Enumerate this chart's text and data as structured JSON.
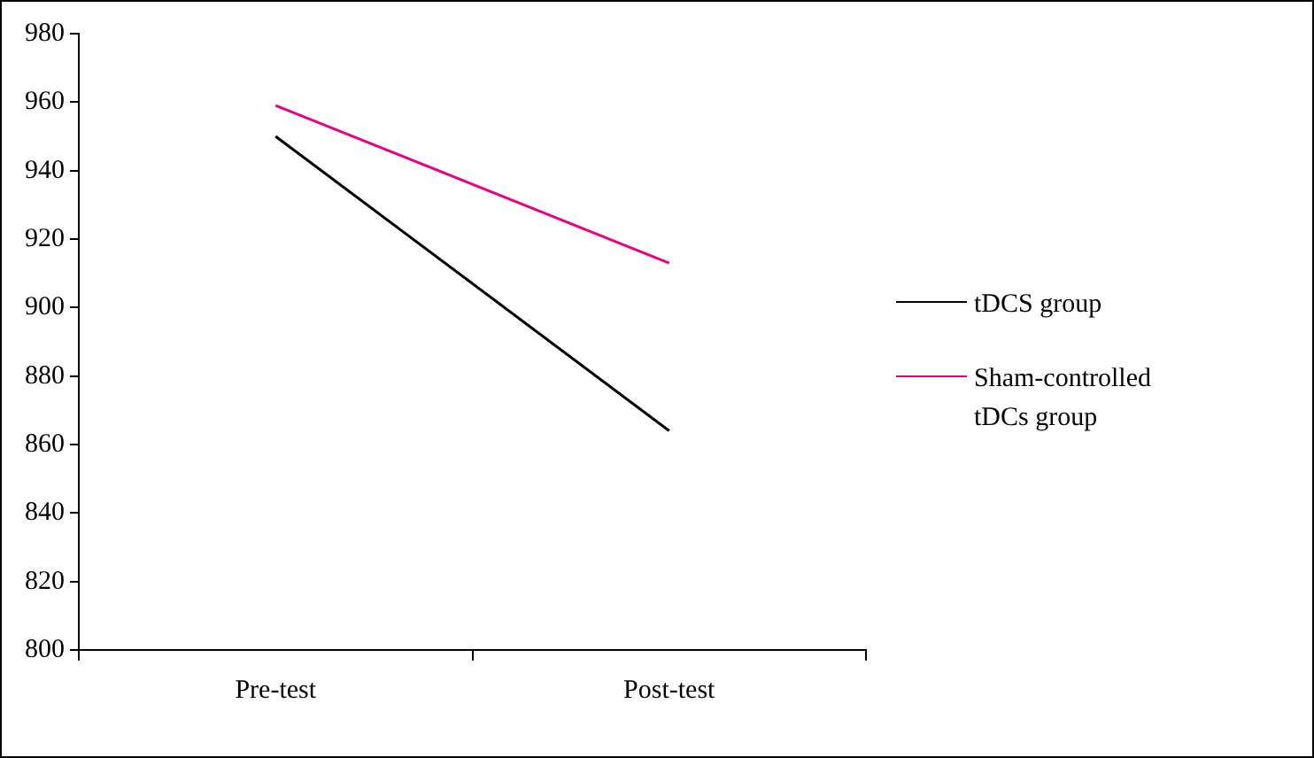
{
  "chart_data": {
    "type": "line",
    "categories": [
      "Pre-test",
      "Post-test"
    ],
    "series": [
      {
        "name": "tDCS group",
        "color": "#000000",
        "values": [
          950,
          864
        ]
      },
      {
        "name": "Sham-controlled tDCs group",
        "color": "#e6007e",
        "values": [
          959,
          913
        ]
      }
    ],
    "ylim": [
      800,
      980
    ],
    "yticks": [
      800,
      820,
      840,
      860,
      880,
      900,
      920,
      940,
      960,
      980
    ],
    "legend": "right",
    "marker": "none"
  }
}
